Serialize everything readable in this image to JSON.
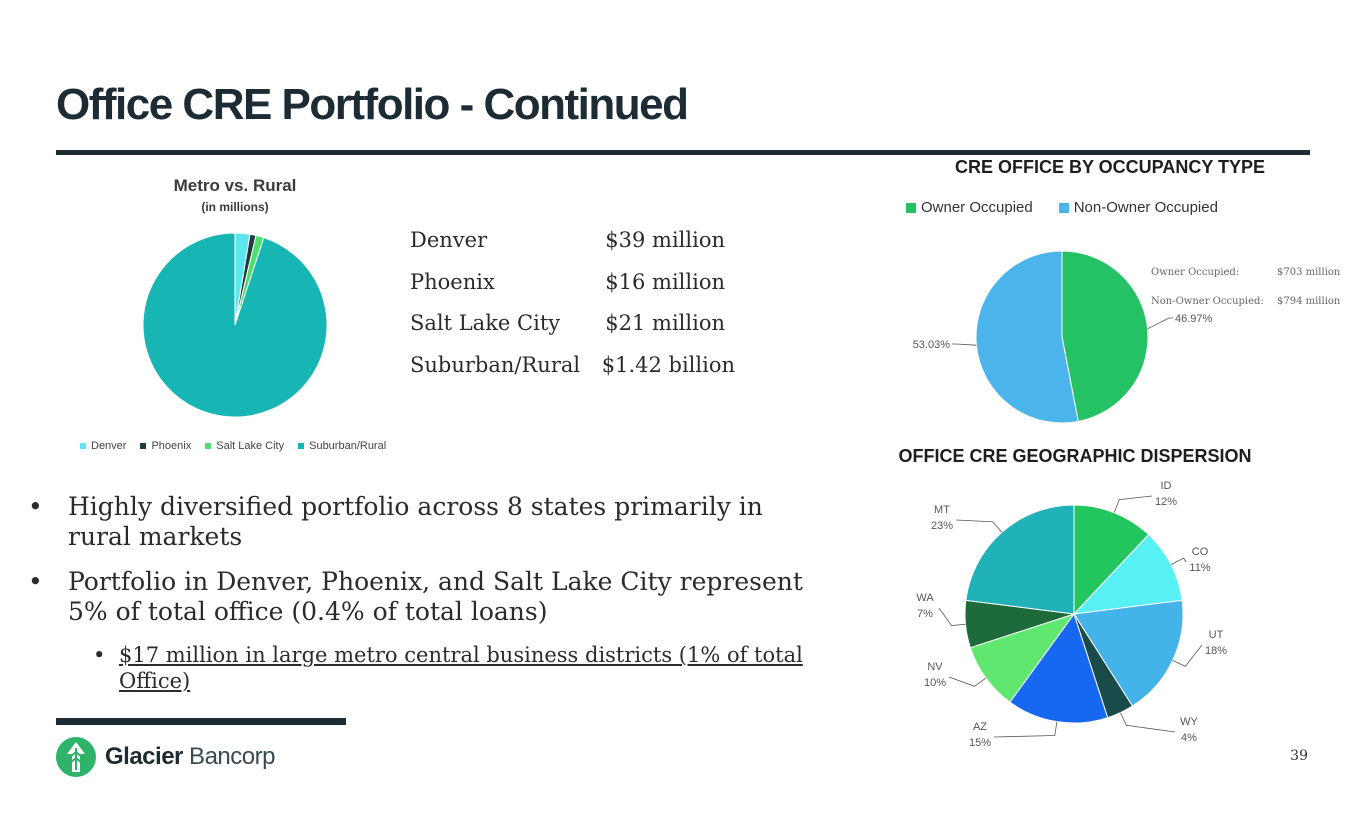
{
  "slide": {
    "title": "Office CRE Portfolio - Continued",
    "page_number": "39"
  },
  "metro": {
    "title": "Metro vs. Rural",
    "subtitle": "(in millions)",
    "rows": [
      {
        "city": "Denver",
        "amount": "$39 million"
      },
      {
        "city": "Phoenix",
        "amount": "$16 million"
      },
      {
        "city": "Salt Lake City",
        "amount": "$21 million"
      },
      {
        "city": "Suburban/Rural",
        "amount": "$1.42 billion"
      }
    ]
  },
  "bullets": {
    "b1": "Highly diversified portfolio across 8 states primarily in rural markets",
    "b2": "Portfolio in Denver, Phoenix, and Salt Lake City represent 5% of total office (0.4% of total loans)",
    "b3": "$17 million in large metro central business districts (1% of total Office)"
  },
  "occupancy": {
    "title": "CRE OFFICE BY OCCUPANCY TYPE",
    "note_owner_label": "Owner Occupied:",
    "note_owner_value": "$703 million",
    "note_non_owner_label": "Non-Owner Occupied:",
    "note_non_owner_value": "$794 million"
  },
  "geo": {
    "title": "OFFICE CRE GEOGRAPHIC DISPERSION"
  },
  "logo": {
    "brand_bold": "Glacier",
    "brand_light": " Bancorp"
  },
  "colors": {
    "denver": "#5ee6ee",
    "phoenix": "#1f3a40",
    "salt_lake_city": "#4fdd6e",
    "suburban_rural": "#18b5b5",
    "owner": "#25c265",
    "non_owner": "#4bb4ea",
    "brand_dark": "#1d2b34",
    "brand_green": "#2fb36a"
  },
  "chart_data": [
    {
      "type": "pie",
      "id": "metro",
      "title": "Metro vs. Rural",
      "subtitle": "(in millions)",
      "categories": [
        "Denver",
        "Phoenix",
        "Salt Lake City",
        "Suburban/Rural"
      ],
      "values": [
        39,
        16,
        21,
        1420
      ],
      "colors": [
        "#5ee6ee",
        "#1f3a40",
        "#4fdd6e",
        "#18b5b5"
      ],
      "legend": "bottom"
    },
    {
      "type": "pie",
      "id": "occupancy",
      "title": "CRE OFFICE BY OCCUPANCY TYPE",
      "categories": [
        "Owner Occupied",
        "Non-Owner Occupied"
      ],
      "values": [
        46.97,
        53.03
      ],
      "labels": [
        "46.97%",
        "53.03%"
      ],
      "colors": [
        "#25c265",
        "#4bb4ea"
      ],
      "legend": "top"
    },
    {
      "type": "pie",
      "id": "geo",
      "title": "OFFICE CRE GEOGRAPHIC DISPERSION",
      "categories": [
        "ID",
        "CO",
        "UT",
        "WY",
        "AZ",
        "NV",
        "WA",
        "MT"
      ],
      "values": [
        12,
        11,
        18,
        4,
        15,
        10,
        7,
        23
      ],
      "labels": [
        "12%",
        "11%",
        "18%",
        "4%",
        "15%",
        "10%",
        "7%",
        "23%"
      ],
      "colors": [
        "#22c55e",
        "#56f0f5",
        "#43b3ea",
        "#1a4b4b",
        "#1668f0",
        "#5fe770",
        "#1d6b3a",
        "#20b2b8"
      ]
    }
  ]
}
